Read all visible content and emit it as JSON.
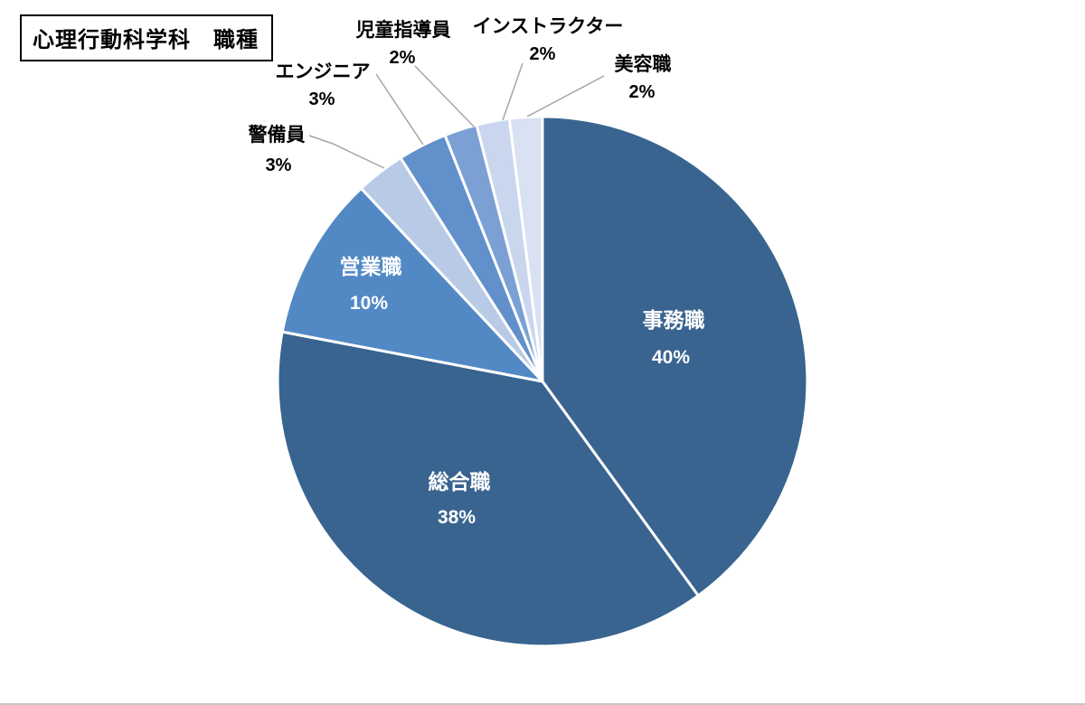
{
  "title": {
    "text": "心理行動科学科　職種"
  },
  "chart_data": {
    "type": "pie",
    "title": "心理行動科学科　職種",
    "unit": "%",
    "start_angle_deg": 0,
    "direction": "clockwise",
    "legend": "none",
    "data_labels": "category name + percentage",
    "leader_line_color": "#a6a6a6",
    "separator_color": "#ffffff",
    "slices": [
      {
        "label": "事務職",
        "slug": "office-work",
        "value": 40,
        "pct_label": "40%",
        "color": "#38648f",
        "label_placement": "inside",
        "label_color": "#ffffff"
      },
      {
        "label": "総合職",
        "slug": "general-staff",
        "value": 38,
        "pct_label": "38%",
        "color": "#38648f",
        "label_placement": "inside",
        "label_color": "#ffffff"
      },
      {
        "label": "営業職",
        "slug": "sales",
        "value": 10,
        "pct_label": "10%",
        "color": "#5289c5",
        "label_placement": "inside",
        "label_color": "#ffffff"
      },
      {
        "label": "警備員",
        "slug": "security-guard",
        "value": 3,
        "pct_label": "3%",
        "color": "#b9cae7",
        "label_placement": "outside",
        "label_color": "#000000"
      },
      {
        "label": "エンジニア",
        "slug": "engineer",
        "value": 3,
        "pct_label": "3%",
        "color": "#6290cb",
        "label_placement": "outside",
        "label_color": "#000000"
      },
      {
        "label": "児童指導員",
        "slug": "child-instructor",
        "value": 2,
        "pct_label": "2%",
        "color": "#7ba0d4",
        "label_placement": "outside",
        "label_color": "#000000"
      },
      {
        "label": "インストラクター",
        "slug": "instructor",
        "value": 2,
        "pct_label": "2%",
        "color": "#c9d6ee",
        "label_placement": "outside",
        "label_color": "#000000"
      },
      {
        "label": "美容職",
        "slug": "beauty",
        "value": 2,
        "pct_label": "2%",
        "color": "#d9e2f3",
        "label_placement": "outside",
        "label_color": "#000000"
      }
    ]
  }
}
